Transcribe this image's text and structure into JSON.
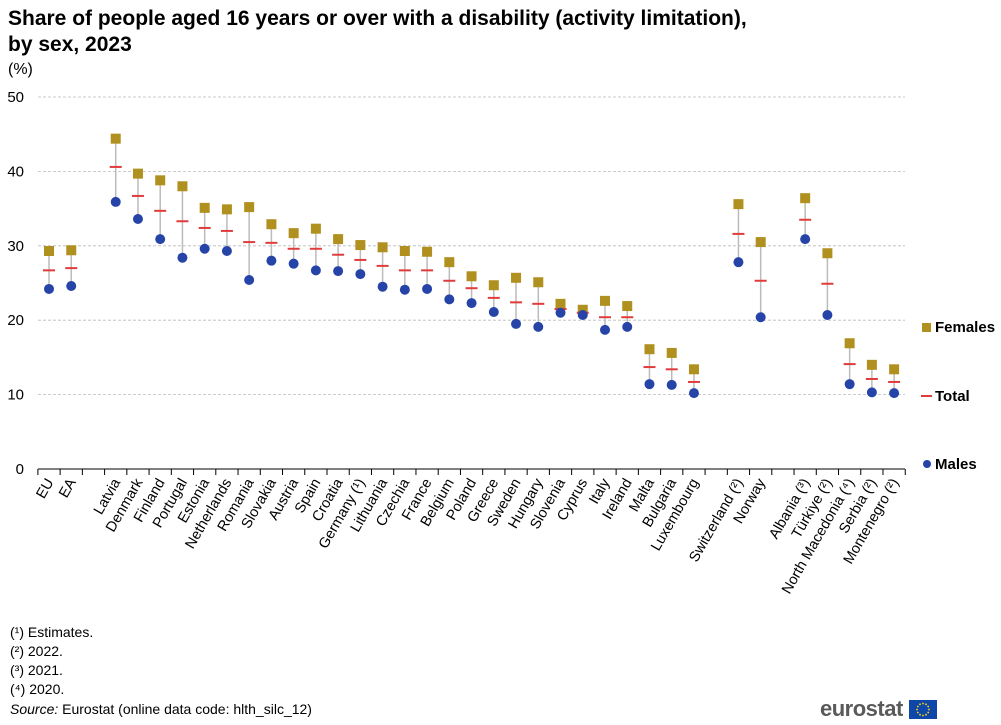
{
  "title": "Share of people aged 16 years or over with a disability (activity limitation), by sex, 2023",
  "unit": "(%)",
  "colors": {
    "Females": "#b0901e",
    "Total": "#e03c3c",
    "Males": "#2644a8",
    "connector": "#bbbbbb",
    "grid": "#bbbbbb"
  },
  "chart_data": {
    "type": "scatter",
    "title": "Share of people aged 16 years or over with a disability (activity limitation), by sex, 2023",
    "ylabel": "(%)",
    "ylim": [
      0,
      50
    ],
    "yticks": [
      0,
      10,
      20,
      30,
      40,
      50
    ],
    "grid": true,
    "legend_position": "right",
    "categories": [
      "EU",
      "EA",
      "",
      "Latvia",
      "Denmark",
      "Finland",
      "Portugal",
      "Estonia",
      "Netherlands",
      "Romania",
      "Slovakia",
      "Austria",
      "Spain",
      "Croatia",
      "Germany (¹)",
      "Lithuania",
      "Czechia",
      "France",
      "Belgium",
      "Poland",
      "Greece",
      "Sweden",
      "Hungary",
      "Slovenia",
      "Cyprus",
      "Italy",
      "Ireland",
      "Malta",
      "Bulgaria",
      "Luxembourg",
      "",
      "Switzerland (²)",
      "Norway",
      "",
      "Albania (³)",
      "Türkiye (²)",
      "North Macedonia (⁴)",
      "Serbia (²)",
      "Montenegro (²)"
    ],
    "series": [
      {
        "name": "Females",
        "marker": "square",
        "values": [
          29.3,
          29.4,
          null,
          44.4,
          39.7,
          38.8,
          38.0,
          35.1,
          34.9,
          35.2,
          32.9,
          31.7,
          32.3,
          30.9,
          30.1,
          29.8,
          29.3,
          29.2,
          27.8,
          25.9,
          24.7,
          25.7,
          25.1,
          22.2,
          21.4,
          22.6,
          21.9,
          16.1,
          15.6,
          13.4,
          null,
          35.6,
          30.5,
          null,
          36.4,
          29.0,
          16.9,
          14.0,
          13.4
        ]
      },
      {
        "name": "Total",
        "marker": "dash",
        "values": [
          26.7,
          27.0,
          null,
          40.6,
          36.7,
          34.7,
          33.3,
          32.4,
          32.0,
          30.5,
          30.4,
          29.6,
          29.6,
          28.8,
          28.1,
          27.3,
          26.7,
          26.7,
          25.3,
          24.3,
          23.0,
          22.4,
          22.2,
          21.5,
          21.0,
          20.4,
          20.4,
          13.7,
          13.4,
          11.7,
          null,
          31.6,
          25.3,
          null,
          33.5,
          24.9,
          14.1,
          12.1,
          11.7
        ]
      },
      {
        "name": "Males",
        "marker": "circle",
        "values": [
          24.2,
          24.6,
          null,
          35.9,
          33.6,
          30.9,
          28.4,
          29.6,
          29.3,
          25.4,
          28.0,
          27.6,
          26.7,
          26.6,
          26.2,
          24.5,
          24.1,
          24.2,
          22.8,
          22.3,
          21.1,
          19.5,
          19.1,
          21.0,
          20.7,
          18.7,
          19.1,
          11.4,
          11.3,
          10.2,
          null,
          27.8,
          20.4,
          null,
          30.9,
          20.7,
          11.4,
          10.3,
          10.2
        ]
      }
    ]
  },
  "footnotes": [
    "(¹) Estimates.",
    "(²) 2022.",
    "(³) 2021.",
    "(⁴) 2020."
  ],
  "source": {
    "label": "Source:",
    "text": " Eurostat (online data code: hlth_silc_12)"
  },
  "logo": "eurostat"
}
